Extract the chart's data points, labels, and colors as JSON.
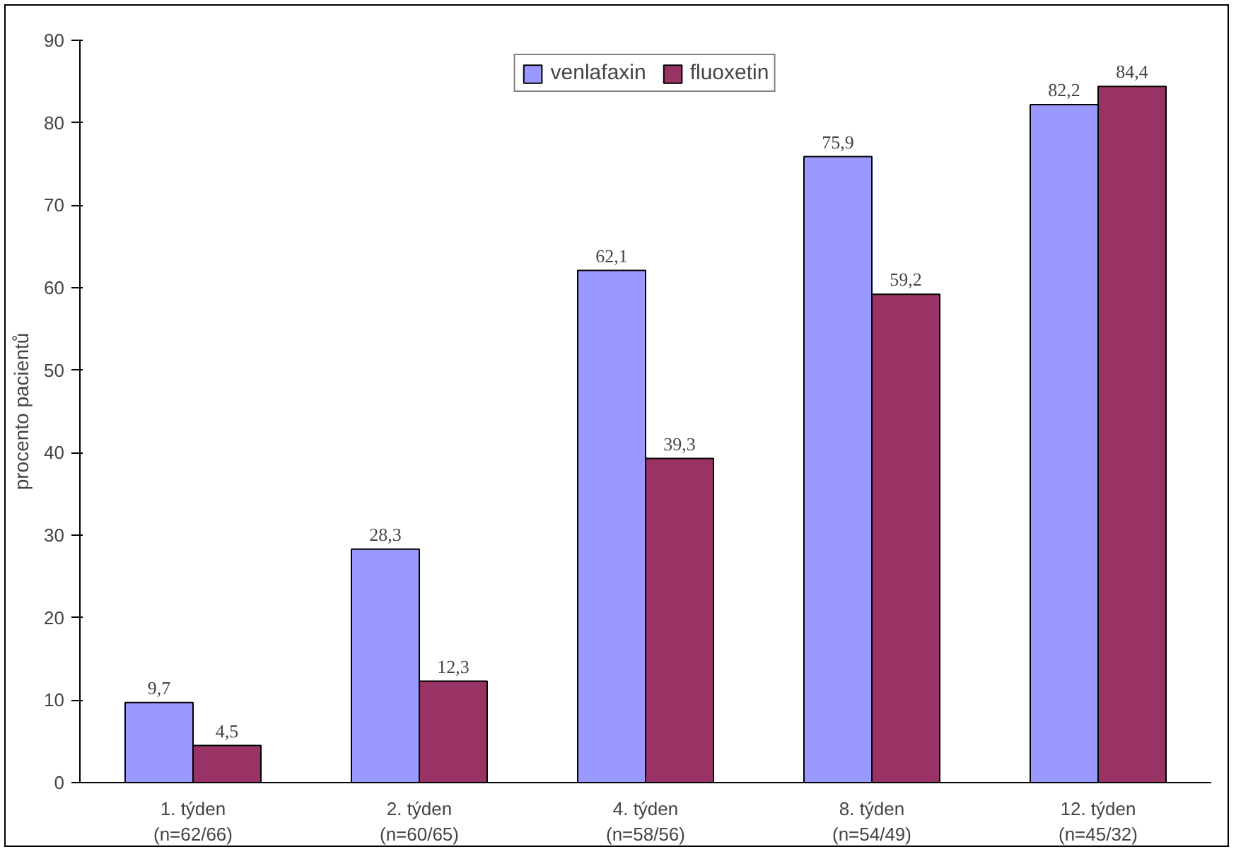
{
  "chart_data": {
    "type": "bar",
    "ylabel": "procento pacientů",
    "categories": [
      "1. týden\n(n=62/66)",
      "2. týden\n(n=60/65)",
      "4. týden\n(n=58/56)",
      "8. týden\n(n=54/49)",
      "12. týden\n(n=45/32)"
    ],
    "series": [
      {
        "name": "venlafaxin",
        "color": "#9999ff",
        "values": [
          9.7,
          28.3,
          62.1,
          75.9,
          82.2
        ],
        "value_labels": [
          "9,7",
          "28,3",
          "62,1",
          "75,9",
          "82,2"
        ]
      },
      {
        "name": "fluoxetin",
        "color": "#993366",
        "values": [
          4.5,
          12.3,
          39.3,
          59.2,
          84.4
        ],
        "value_labels": [
          "4,5",
          "12,3",
          "39,3",
          "59,2",
          "84,4"
        ]
      }
    ],
    "ylim": [
      0,
      90
    ],
    "yticks": [
      0,
      10,
      20,
      30,
      40,
      50,
      60,
      70,
      80,
      90
    ],
    "grid": false,
    "legend": "top"
  }
}
